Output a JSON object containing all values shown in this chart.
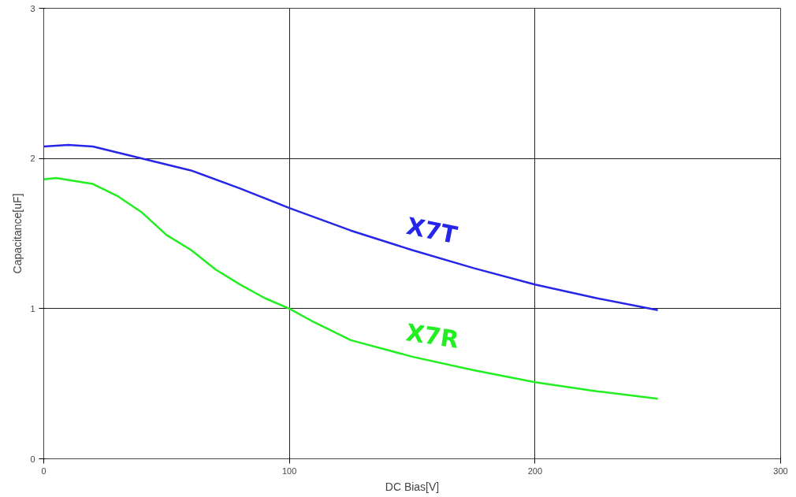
{
  "chart_data": {
    "type": "line",
    "xlabel": "DC Bias[V]",
    "ylabel": "Capacitance[uF]",
    "xlim": [
      0,
      300
    ],
    "ylim": [
      0,
      3
    ],
    "xticks": [
      0,
      100,
      200,
      300
    ],
    "yticks": [
      0,
      1,
      2,
      3
    ],
    "grid": true,
    "marker": "none",
    "line_style": "solid",
    "series": [
      {
        "name": "X7T",
        "color": "#2626e8",
        "x": [
          0,
          10,
          20,
          40,
          60,
          80,
          100,
          125,
          150,
          175,
          200,
          225,
          250
        ],
        "values": [
          2.08,
          2.09,
          2.08,
          2.0,
          1.92,
          1.8,
          1.67,
          1.52,
          1.39,
          1.27,
          1.16,
          1.07,
          0.99
        ]
      },
      {
        "name": "X7R",
        "color": "#22ee22",
        "x": [
          0,
          5,
          20,
          30,
          40,
          50,
          60,
          70,
          80,
          90,
          100,
          110,
          125,
          150,
          175,
          200,
          225,
          250
        ],
        "values": [
          1.86,
          1.87,
          1.83,
          1.75,
          1.64,
          1.49,
          1.39,
          1.26,
          1.16,
          1.07,
          1.0,
          0.91,
          0.79,
          0.68,
          0.59,
          0.51,
          0.45,
          0.4
        ]
      }
    ]
  }
}
